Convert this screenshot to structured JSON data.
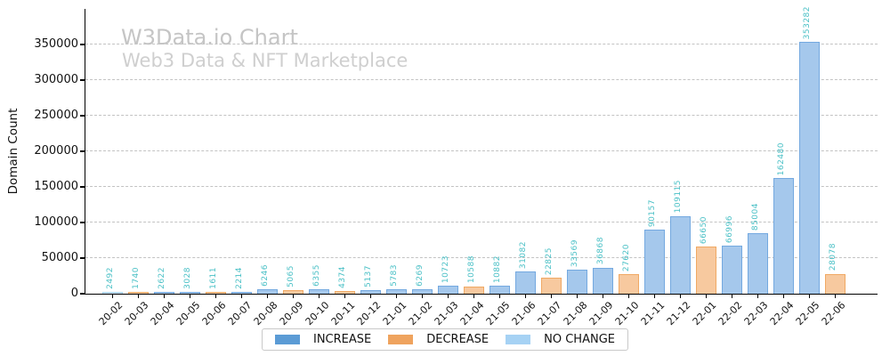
{
  "chart_data": {
    "type": "bar",
    "title": "W3Data.io Chart",
    "subtitle": "Web3 Data & NFT Marketplace",
    "xlabel": "",
    "ylabel": "Domain Count",
    "ylim": [
      0,
      400000
    ],
    "yticks": [
      0,
      50000,
      100000,
      150000,
      200000,
      250000,
      300000,
      350000
    ],
    "grid": "horizontal-dashed",
    "legend_position": "bottom-center",
    "bar_value_labels_rotation": 90,
    "categories": [
      "20-02",
      "20-03",
      "20-04",
      "20-05",
      "20-06",
      "20-07",
      "20-08",
      "20-09",
      "20-10",
      "20-11",
      "20-12",
      "21-01",
      "21-02",
      "21-03",
      "21-04",
      "21-05",
      "21-06",
      "21-07",
      "21-08",
      "21-09",
      "21-10",
      "21-11",
      "21-12",
      "22-01",
      "22-02",
      "22-03",
      "22-04",
      "22-05",
      "22-06"
    ],
    "values": [
      2492,
      1740,
      2622,
      3028,
      1611,
      2214,
      6246,
      5065,
      6355,
      4374,
      5137,
      5783,
      6269,
      10723,
      10588,
      10882,
      31082,
      22825,
      33569,
      36868,
      27620,
      90157,
      109115,
      66650,
      66996,
      85004,
      162480,
      353282,
      28078
    ],
    "statuses": [
      "no_change",
      "decrease",
      "increase",
      "increase",
      "decrease",
      "increase",
      "increase",
      "decrease",
      "increase",
      "decrease",
      "increase",
      "increase",
      "increase",
      "increase",
      "decrease",
      "increase",
      "increase",
      "decrease",
      "increase",
      "increase",
      "decrease",
      "increase",
      "increase",
      "decrease",
      "increase",
      "increase",
      "increase",
      "increase",
      "decrease"
    ]
  },
  "legend": {
    "items": [
      {
        "key": "increase",
        "label": "INCREASE",
        "color": "#5b9bd5"
      },
      {
        "key": "decrease",
        "label": "DECREASE",
        "color": "#efa35e"
      },
      {
        "key": "no_change",
        "label": "NO CHANGE",
        "color": "#a6d2f4"
      }
    ]
  },
  "colors": {
    "increase": {
      "fill": "#a5c8ec",
      "edge": "#74a9e0"
    },
    "decrease": {
      "fill": "#f7c99f",
      "edge": "#f0a964"
    },
    "no_change": {
      "fill": "#cde5f8",
      "edge": "#a9d4f5"
    },
    "value_label": "#4ac0c6",
    "grid": "#c3c3c3",
    "axis": "#000000",
    "title": "#c5c5c5",
    "subtitle": "#cfcfcf"
  }
}
